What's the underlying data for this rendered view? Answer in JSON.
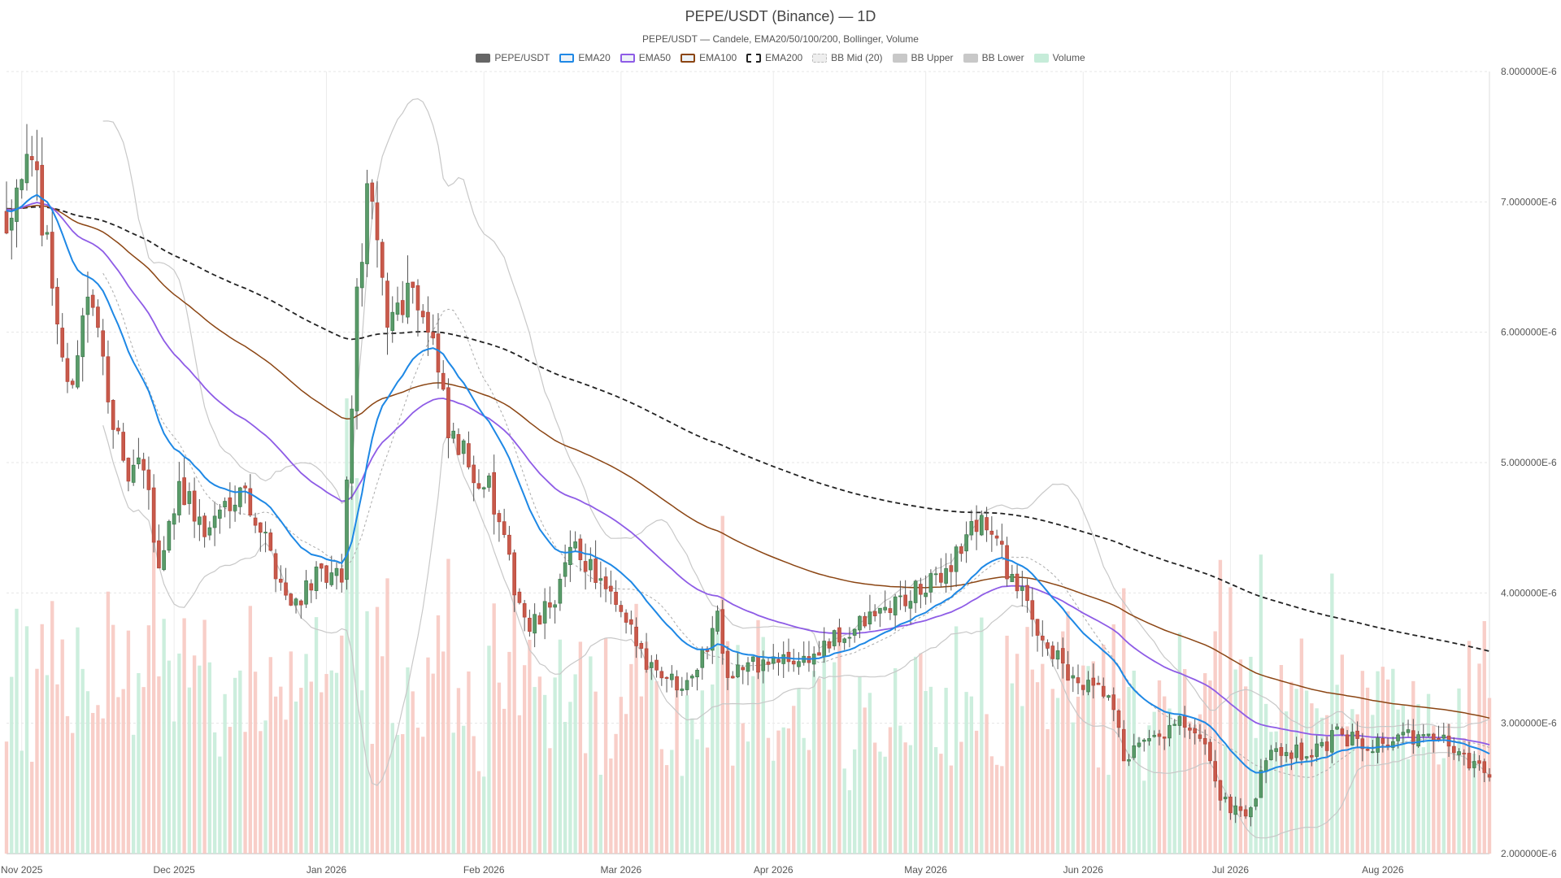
{
  "chart_data": {
    "type": "candlestick",
    "title": "PEPE/USDT (Binance) — 1D",
    "subtitle": "PEPE/USDT — Candele, EMA20/50/100/200, Bollinger, Volume",
    "legend": [
      {
        "label": "PEPE/USDT",
        "color": "#666666",
        "style": "solid"
      },
      {
        "label": "EMA20",
        "color": "#1e88e5",
        "style": "outline"
      },
      {
        "label": "EMA50",
        "color": "#8e5ce6",
        "style": "outline"
      },
      {
        "label": "EMA100",
        "color": "#8b4513",
        "style": "outline"
      },
      {
        "label": "EMA200",
        "color": "#222222",
        "style": "dashed"
      },
      {
        "label": "BB Mid (20)",
        "color": "#bbbbbb",
        "style": "dotted"
      },
      {
        "label": "BB Upper",
        "color": "#c8c8c8",
        "style": "solid"
      },
      {
        "label": "BB Lower",
        "color": "#c8c8c8",
        "style": "solid"
      },
      {
        "label": "Volume",
        "color": "#c6ecd9",
        "style": "solid"
      }
    ],
    "y_axis": {
      "position": "right",
      "ylim": [
        2e-06,
        8e-06
      ],
      "ticks": [
        "8.000000E-6",
        "7.000000E-6",
        "6.000000E-6",
        "5.000000E-6",
        "4.000000E-6",
        "3.000000E-6",
        "2.000000E-6"
      ],
      "tick_values": [
        8,
        7,
        6,
        5,
        4,
        3,
        2
      ]
    },
    "x_axis": {
      "ticks": [
        "Nov 2025",
        "Dec 2025",
        "Jan 2026",
        "Feb 2026",
        "Mar 2026",
        "Apr 2026",
        "May 2026",
        "Jun 2026",
        "Jul 2026",
        "Aug 2026"
      ],
      "tick_days": [
        3,
        33,
        63,
        94,
        121,
        151,
        181,
        212,
        241,
        271
      ]
    },
    "day_range": [
      0,
      292
    ],
    "grid": true,
    "price_unit_multiplier": 1e-06,
    "keypoints": [
      [
        0,
        6.9
      ],
      [
        3,
        7.3
      ],
      [
        6,
        7.1
      ],
      [
        8,
        6.7
      ],
      [
        12,
        5.5
      ],
      [
        16,
        6.3
      ],
      [
        20,
        5.6
      ],
      [
        23,
        4.9
      ],
      [
        27,
        4.95
      ],
      [
        30,
        4.2
      ],
      [
        34,
        4.85
      ],
      [
        39,
        4.45
      ],
      [
        46,
        4.85
      ],
      [
        50,
        4.5
      ],
      [
        56,
        3.9
      ],
      [
        60,
        4.1
      ],
      [
        66,
        4.1
      ],
      [
        69,
        6.2
      ],
      [
        71,
        7.1
      ],
      [
        75,
        6.1
      ],
      [
        80,
        6.4
      ],
      [
        84,
        5.9
      ],
      [
        87,
        5.2
      ],
      [
        95,
        4.8
      ],
      [
        99,
        4.2
      ],
      [
        103,
        3.7
      ],
      [
        107,
        3.9
      ],
      [
        112,
        4.35
      ],
      [
        115,
        4.2
      ],
      [
        121,
        3.8
      ],
      [
        126,
        3.5
      ],
      [
        132,
        3.3
      ],
      [
        137,
        3.5
      ],
      [
        140,
        3.85
      ],
      [
        142,
        3.4
      ],
      [
        148,
        3.45
      ],
      [
        158,
        3.5
      ],
      [
        168,
        3.75
      ],
      [
        174,
        3.9
      ],
      [
        182,
        4.05
      ],
      [
        187,
        4.3
      ],
      [
        192,
        4.6
      ],
      [
        197,
        4.2
      ],
      [
        202,
        3.8
      ],
      [
        210,
        3.3
      ],
      [
        217,
        3.2
      ],
      [
        220,
        2.75
      ],
      [
        226,
        2.85
      ],
      [
        231,
        3.0
      ],
      [
        237,
        2.75
      ],
      [
        239,
        2.4
      ],
      [
        245,
        2.3
      ],
      [
        249,
        2.85
      ],
      [
        256,
        2.75
      ],
      [
        262,
        2.9
      ],
      [
        269,
        2.85
      ],
      [
        276,
        2.9
      ],
      [
        283,
        2.85
      ],
      [
        287,
        2.75
      ],
      [
        292,
        2.6
      ]
    ],
    "ema_initial": {
      "ema20": 6.95,
      "ema50": 6.95,
      "ema100": 6.95,
      "ema200": 6.95
    }
  }
}
